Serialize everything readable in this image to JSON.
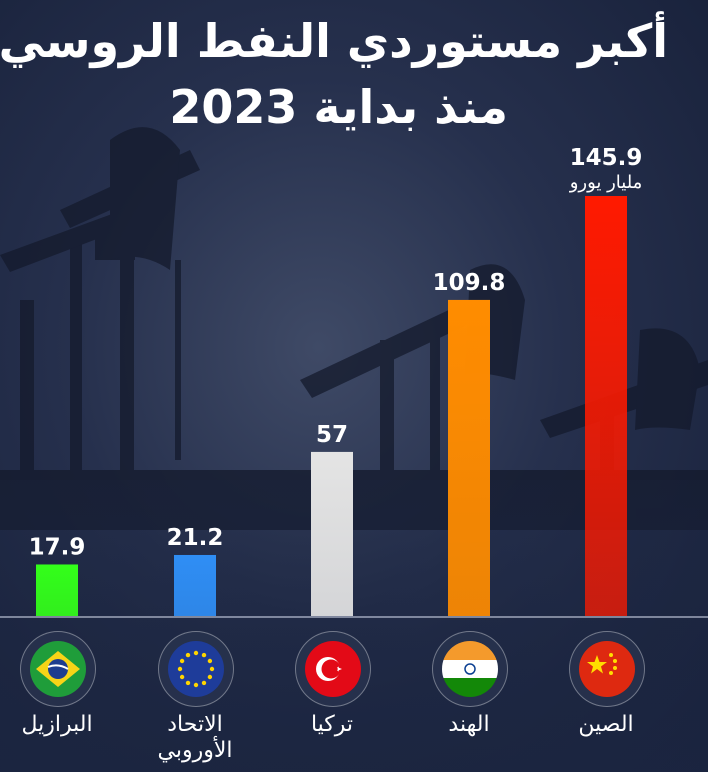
{
  "title": {
    "line1": "أكبر مستوردي النفط الروسي",
    "line2": "منذ بداية 2023"
  },
  "chart_data": {
    "type": "bar",
    "categories": [
      "البرازيل",
      "الاتحاد الأوروبي",
      "تركيا",
      "الهند",
      "الصين"
    ],
    "values": [
      17.9,
      21.2,
      57,
      109.8,
      145.9
    ],
    "value_labels": [
      "17.9",
      "21.2",
      "57",
      "109.8",
      "145.9"
    ],
    "unit": "مليار يورو",
    "colors": [
      "#33ff1a",
      "#2f8ef5",
      "#e4e4e4",
      "#ff8c00",
      "#ff1a00"
    ],
    "ylim": [
      0,
      145.9
    ],
    "title": "أكبر مستوردي النفط الروسي منذ بداية 2023",
    "xlabel": "",
    "ylabel": "",
    "grid": false
  },
  "flags": [
    "brazil-flag-icon",
    "eu-flag-icon",
    "turkey-flag-icon",
    "india-flag-icon",
    "china-flag-icon"
  ],
  "country_lines": [
    [
      "البرازيل"
    ],
    [
      "الاتحاد",
      "الأوروبي"
    ],
    [
      "تركيا"
    ],
    [
      "الهند"
    ],
    [
      "الصين"
    ]
  ]
}
